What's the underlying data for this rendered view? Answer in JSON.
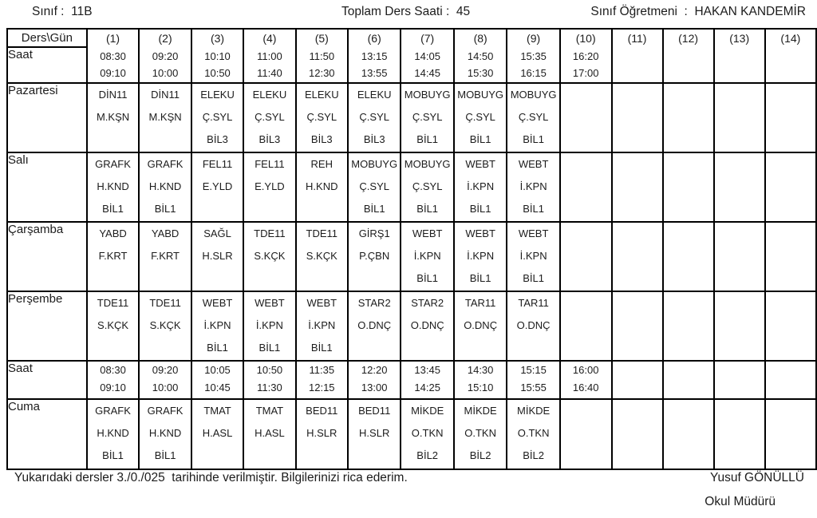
{
  "colors": {
    "background": "#ffffff",
    "text": "#1c1c1c",
    "border": "#000000"
  },
  "header": {
    "class_text": "Sınıf :  11B",
    "total_text": "Toplam Ders Saati :  45",
    "teacher_text": "Sınıf Öğretmeni  :  HAKAN KANDEMİR"
  },
  "schedule": {
    "corner_label": "Ders\\Gün",
    "hour_label": "Saat",
    "columns": [
      {
        "num": "(1)",
        "times": [
          "08:30",
          "09:10"
        ]
      },
      {
        "num": "(2)",
        "times": [
          "09:20",
          "10:00"
        ]
      },
      {
        "num": "(3)",
        "times": [
          "10:10",
          "10:50"
        ]
      },
      {
        "num": "(4)",
        "times": [
          "11:00",
          "11:40"
        ]
      },
      {
        "num": "(5)",
        "times": [
          "11:50",
          "12:30"
        ]
      },
      {
        "num": "(6)",
        "times": [
          "13:15",
          "13:55"
        ]
      },
      {
        "num": "(7)",
        "times": [
          "14:05",
          "14:45"
        ]
      },
      {
        "num": "(8)",
        "times": [
          "14:50",
          "15:30"
        ]
      },
      {
        "num": "(9)",
        "times": [
          "15:35",
          "16:15"
        ]
      },
      {
        "num": "(10)",
        "times": [
          "16:20",
          "17:00"
        ]
      },
      {
        "num": "(11)",
        "times": []
      },
      {
        "num": "(12)",
        "times": []
      },
      {
        "num": "(13)",
        "times": []
      },
      {
        "num": "(14)",
        "times": []
      }
    ],
    "rows": [
      {
        "type": "day",
        "label": "Pazartesi",
        "cells": [
          [
            "DİN11",
            "M.KŞN"
          ],
          [
            "DİN11",
            "M.KŞN"
          ],
          [
            "ELEKU",
            "Ç.SYL",
            "BİL3"
          ],
          [
            "ELEKU",
            "Ç.SYL",
            "BİL3"
          ],
          [
            "ELEKU",
            "Ç.SYL",
            "BİL3"
          ],
          [
            "ELEKU",
            "Ç.SYL",
            "BİL3"
          ],
          [
            "MOBUYG",
            "Ç.SYL",
            "BİL1"
          ],
          [
            "MOBUYG",
            "Ç.SYL",
            "BİL1"
          ],
          [
            "MOBUYG",
            "Ç.SYL",
            "BİL1"
          ],
          [],
          [],
          [],
          [],
          []
        ]
      },
      {
        "type": "day",
        "label": "Salı",
        "cells": [
          [
            "GRAFK",
            "H.KND",
            "BİL1"
          ],
          [
            "GRAFK",
            "H.KND",
            "BİL1"
          ],
          [
            "FEL11",
            "E.YLD"
          ],
          [
            "FEL11",
            "E.YLD"
          ],
          [
            "REH",
            "H.KND"
          ],
          [
            "MOBUYG",
            "Ç.SYL",
            "BİL1"
          ],
          [
            "MOBUYG",
            "Ç.SYL",
            "BİL1"
          ],
          [
            "WEBT",
            "İ.KPN",
            "BİL1"
          ],
          [
            "WEBT",
            "İ.KPN",
            "BİL1"
          ],
          [],
          [],
          [],
          [],
          []
        ]
      },
      {
        "type": "day",
        "label": "Çarşamba",
        "cells": [
          [
            "YABD",
            "F.KRT"
          ],
          [
            "YABD",
            "F.KRT"
          ],
          [
            "SAĞL",
            "H.SLR"
          ],
          [
            "TDE11",
            "S.KÇK"
          ],
          [
            "TDE11",
            "S.KÇK"
          ],
          [
            "GİRŞ1",
            "P.ÇBN"
          ],
          [
            "WEBT",
            "İ.KPN",
            "BİL1"
          ],
          [
            "WEBT",
            "İ.KPN",
            "BİL1"
          ],
          [
            "WEBT",
            "İ.KPN",
            "BİL1"
          ],
          [],
          [],
          [],
          [],
          []
        ]
      },
      {
        "type": "day",
        "label": "Perşembe",
        "cells": [
          [
            "TDE11",
            "S.KÇK"
          ],
          [
            "TDE11",
            "S.KÇK"
          ],
          [
            "WEBT",
            "İ.KPN",
            "BİL1"
          ],
          [
            "WEBT",
            "İ.KPN",
            "BİL1"
          ],
          [
            "WEBT",
            "İ.KPN",
            "BİL1"
          ],
          [
            "STAR2",
            "O.DNÇ"
          ],
          [
            "STAR2",
            "O.DNÇ"
          ],
          [
            "TAR11",
            "O.DNÇ"
          ],
          [
            "TAR11",
            "O.DNÇ"
          ],
          [],
          [],
          [],
          [],
          []
        ]
      },
      {
        "type": "hours",
        "label": "Saat",
        "cells": [
          [
            "08:30",
            "09:10"
          ],
          [
            "09:20",
            "10:00"
          ],
          [
            "10:05",
            "10:45"
          ],
          [
            "10:50",
            "11:30"
          ],
          [
            "11:35",
            "12:15"
          ],
          [
            "12:20",
            "13:00"
          ],
          [
            "13:45",
            "14:25"
          ],
          [
            "14:30",
            "15:10"
          ],
          [
            "15:15",
            "15:55"
          ],
          [
            "16:00",
            "16:40"
          ],
          [],
          [],
          [],
          []
        ]
      },
      {
        "type": "day",
        "label": "Cuma",
        "cells": [
          [
            "GRAFK",
            "H.KND",
            "BİL1"
          ],
          [
            "GRAFK",
            "H.KND",
            "BİL1"
          ],
          [
            "TMAT",
            "H.ASL"
          ],
          [
            "TMAT",
            "H.ASL"
          ],
          [
            "BED11",
            "H.SLR"
          ],
          [
            "BED11",
            "H.SLR"
          ],
          [
            "MİKDE",
            "O.TKN",
            "BİL2"
          ],
          [
            "MİKDE",
            "O.TKN",
            "BİL2"
          ],
          [
            "MİKDE",
            "O.TKN",
            "BİL2"
          ],
          [],
          [],
          [],
          [],
          []
        ]
      }
    ]
  },
  "footer": {
    "note": "Yukarıdaki dersler 3./0./025  tarihinde verilmiştir. Bilgilerinizi rica ederim.",
    "signature_name": "Yusuf GÖNÜLLÜ",
    "signature_title": "Okul Müdürü"
  }
}
